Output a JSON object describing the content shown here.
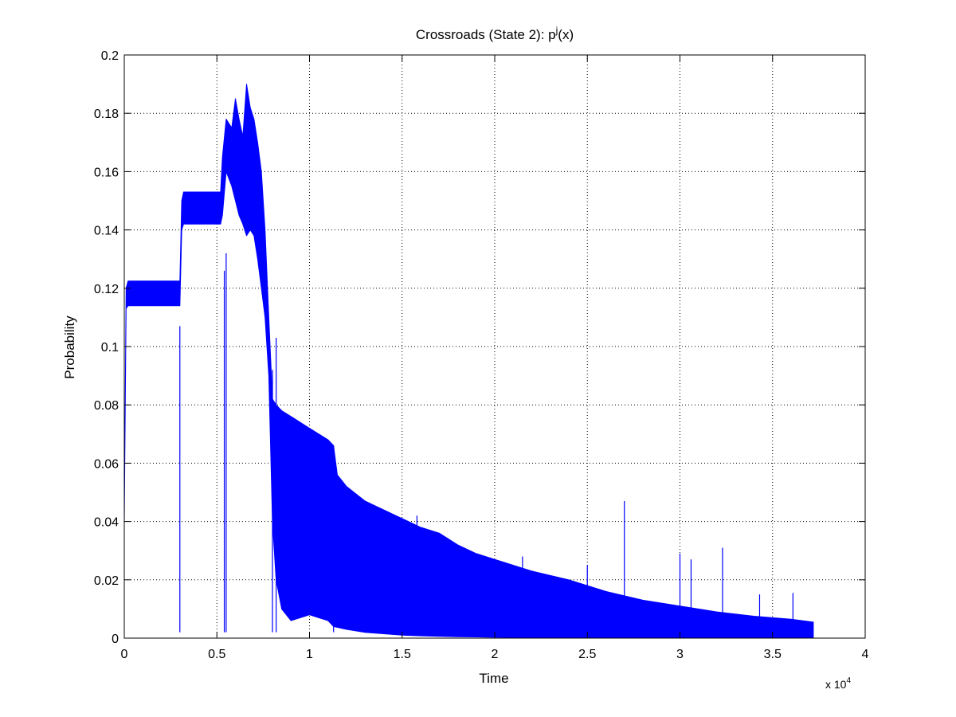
{
  "chart_data": {
    "type": "line",
    "title": "Crossroads (State 2): p",
    "title_superscript": "j",
    "title_suffix": "(x)",
    "xlabel": "Time",
    "ylabel": "Probability",
    "xlim": [
      0,
      4
    ],
    "ylim": [
      0,
      0.2
    ],
    "x_multiplier_base": "x 10",
    "x_multiplier_exponent": "4",
    "x_scale": 10000,
    "grid": true,
    "legend": "none",
    "x_ticks": [
      "0",
      "0.5",
      "1",
      "1.5",
      "2",
      "2.5",
      "3",
      "3.5",
      "4"
    ],
    "y_ticks": [
      "0",
      "0.02",
      "0.04",
      "0.06",
      "0.08",
      "0.1",
      "0.12",
      "0.14",
      "0.16",
      "0.18",
      "0.2"
    ],
    "series": [
      {
        "color": "#0000ff",
        "upper_envelope": {
          "x": [
            0,
            0.01,
            0.02,
            0.3,
            0.31,
            0.32,
            0.52,
            0.53,
            0.55,
            0.58,
            0.6,
            0.62,
            0.64,
            0.66,
            0.68,
            0.7,
            0.72,
            0.74,
            0.76,
            0.78,
            0.8,
            0.82,
            0.85,
            0.9,
            0.95,
            1.0,
            1.05,
            1.1,
            1.13,
            1.15,
            1.2,
            1.3,
            1.4,
            1.5,
            1.6,
            1.7,
            1.8,
            1.9,
            2.0,
            2.2,
            2.4,
            2.6,
            2.8,
            3.0,
            3.2,
            3.4,
            3.6,
            3.72
          ],
          "y": [
            0.04,
            0.12,
            0.1225,
            0.1225,
            0.15,
            0.153,
            0.153,
            0.165,
            0.178,
            0.175,
            0.185,
            0.178,
            0.172,
            0.19,
            0.182,
            0.178,
            0.17,
            0.16,
            0.14,
            0.11,
            0.082,
            0.08,
            0.078,
            0.076,
            0.074,
            0.072,
            0.07,
            0.068,
            0.066,
            0.056,
            0.052,
            0.047,
            0.044,
            0.041,
            0.038,
            0.036,
            0.032,
            0.029,
            0.027,
            0.023,
            0.02,
            0.016,
            0.013,
            0.011,
            0.009,
            0.0075,
            0.0065,
            0.0055
          ]
        },
        "lower_envelope": {
          "x": [
            0,
            0.01,
            0.02,
            0.3,
            0.31,
            0.32,
            0.52,
            0.53,
            0.55,
            0.58,
            0.6,
            0.62,
            0.64,
            0.66,
            0.68,
            0.7,
            0.72,
            0.74,
            0.76,
            0.78,
            0.8,
            0.82,
            0.85,
            0.9,
            0.95,
            1.0,
            1.05,
            1.1,
            1.13,
            1.2,
            1.3,
            1.4,
            1.5,
            1.6,
            1.7,
            1.8,
            1.9,
            2.0,
            2.2,
            2.4,
            2.6,
            2.8,
            3.0,
            3.2,
            3.4,
            3.6,
            3.72
          ],
          "y": [
            0.04,
            0.113,
            0.114,
            0.114,
            0.14,
            0.142,
            0.142,
            0.145,
            0.16,
            0.155,
            0.15,
            0.145,
            0.142,
            0.138,
            0.14,
            0.138,
            0.13,
            0.12,
            0.11,
            0.09,
            0.04,
            0.02,
            0.01,
            0.006,
            0.007,
            0.008,
            0.007,
            0.006,
            0.004,
            0.003,
            0.002,
            0.0015,
            0.001,
            0.0008,
            0.0006,
            0.0005,
            0.0004,
            0.0003,
            0.0002,
            0.0002,
            0.0002,
            0.0002,
            0.0002,
            0.0002,
            0.0002,
            0.0002,
            0.0002
          ]
        },
        "spikes": [
          {
            "x": 0.3,
            "y": 0.107
          },
          {
            "x": 0.54,
            "y": 0.126
          },
          {
            "x": 0.55,
            "y": 0.132
          },
          {
            "x": 0.8,
            "y": 0.092
          },
          {
            "x": 0.82,
            "y": 0.103
          },
          {
            "x": 1.13,
            "y": 0.066
          },
          {
            "x": 1.58,
            "y": 0.042
          },
          {
            "x": 2.15,
            "y": 0.028
          },
          {
            "x": 2.5,
            "y": 0.025
          },
          {
            "x": 2.7,
            "y": 0.047
          },
          {
            "x": 3.0,
            "y": 0.029
          },
          {
            "x": 3.06,
            "y": 0.027
          },
          {
            "x": 3.23,
            "y": 0.031
          },
          {
            "x": 3.43,
            "y": 0.015
          },
          {
            "x": 3.61,
            "y": 0.0155
          }
        ]
      }
    ]
  }
}
